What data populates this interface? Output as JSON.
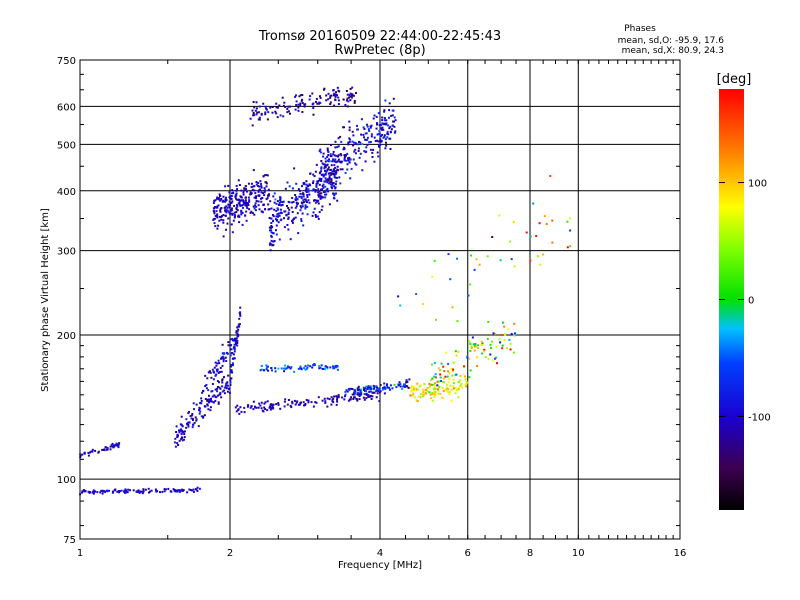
{
  "chart_data": {
    "type": "scatter",
    "title": "Tromsø 20160509 22:44:00-22:45:43",
    "subtitle": "RwPretec (8p)",
    "xlabel": "Frequency [MHz]",
    "ylabel": "Stationary phase Virtual Height [km]",
    "x_scale": "log2",
    "y_scale": "log",
    "xlim": [
      1,
      16
    ],
    "ylim": [
      75,
      750
    ],
    "x_ticks": [
      1,
      2,
      4,
      6,
      8,
      10,
      16
    ],
    "x_tick_labels": [
      "1",
      "2",
      "4",
      "6",
      "8",
      "10",
      "16"
    ],
    "y_ticks": [
      75,
      100,
      200,
      300,
      400,
      500,
      600,
      750
    ],
    "y_tick_labels": [
      "75",
      "100",
      "200",
      "300",
      "400",
      "500",
      "600",
      "750"
    ],
    "grid": true,
    "stats": {
      "heading": "Phases",
      "line_o": "mean, sd,O: -95.9, 17.6",
      "line_x": "mean, sd,X: 80.9, 24.3"
    },
    "colorbar": {
      "label": "[deg]",
      "range": [
        -180,
        180
      ],
      "ticks": [
        100,
        0,
        -100
      ],
      "tick_labels": [
        "100",
        "0",
        "-100"
      ],
      "colormap": "rainbow"
    },
    "series": [
      {
        "x_range": [
          1.0,
          1.2
        ],
        "h_start": 112,
        "h_end": 118,
        "n": 45,
        "jitter": 0.012,
        "phase": -100,
        "phase_sd": 10
      },
      {
        "x_range": [
          1.0,
          1.75
        ],
        "h_start": 94,
        "h_end": 95,
        "n": 110,
        "jitter": 0.01,
        "phase": -100,
        "phase_sd": 10
      },
      {
        "x_range": [
          1.55,
          2.0
        ],
        "h_start": 120,
        "h_end": 160,
        "n": 140,
        "jitter": 0.06,
        "phase": -105,
        "phase_sd": 15
      },
      {
        "x_range": [
          1.75,
          2.05
        ],
        "h_start": 150,
        "h_end": 195,
        "n": 70,
        "jitter": 0.05,
        "phase": -95,
        "phase_sd": 20
      },
      {
        "x_range": [
          2.0,
          2.1
        ],
        "h_start": 160,
        "h_end": 220,
        "n": 60,
        "jitter": 0.05,
        "phase": -100,
        "phase_sd": 15
      },
      {
        "x_range": [
          2.05,
          4.0
        ],
        "h_start": 140,
        "h_end": 150,
        "n": 140,
        "jitter": 0.025,
        "phase": -110,
        "phase_sd": 10
      },
      {
        "x_range": [
          2.3,
          3.3
        ],
        "h_start": 170,
        "h_end": 172,
        "n": 70,
        "jitter": 0.015,
        "phase": -60,
        "phase_sd": 25
      },
      {
        "x_range": [
          3.4,
          4.6
        ],
        "h_start": 152,
        "h_end": 158,
        "n": 110,
        "jitter": 0.02,
        "phase": -80,
        "phase_sd": 30
      },
      {
        "x_range": [
          4.6,
          6.0
        ],
        "h_start": 150,
        "h_end": 158,
        "n": 110,
        "jitter": 0.05,
        "phase": 80,
        "phase_sd": 25
      },
      {
        "x_range": [
          5.0,
          7.5
        ],
        "h_start": 160,
        "h_end": 200,
        "n": 110,
        "jitter": 0.09,
        "phase": 60,
        "phase_sd": 80
      },
      {
        "x_range": [
          1.85,
          2.4
        ],
        "h_start": 360,
        "h_end": 400,
        "n": 280,
        "jitter": 0.1,
        "phase": -105,
        "phase_sd": 15
      },
      {
        "x_range": [
          2.4,
          3.3
        ],
        "h_start": 340,
        "h_end": 430,
        "n": 320,
        "jitter": 0.12,
        "phase": -95,
        "phase_sd": 20
      },
      {
        "x_range": [
          3.0,
          4.3
        ],
        "h_start": 430,
        "h_end": 560,
        "n": 260,
        "jitter": 0.12,
        "phase": -95,
        "phase_sd": 25
      },
      {
        "x_range": [
          2.2,
          3.6
        ],
        "h_start": 580,
        "h_end": 640,
        "n": 140,
        "jitter": 0.05,
        "phase": -110,
        "phase_sd": 20
      },
      {
        "x_range": [
          4.2,
          10.0
        ],
        "h_start": 230,
        "h_end": 330,
        "n": 45,
        "jitter": 0.25,
        "phase": 40,
        "phase_sd": 100
      }
    ]
  }
}
